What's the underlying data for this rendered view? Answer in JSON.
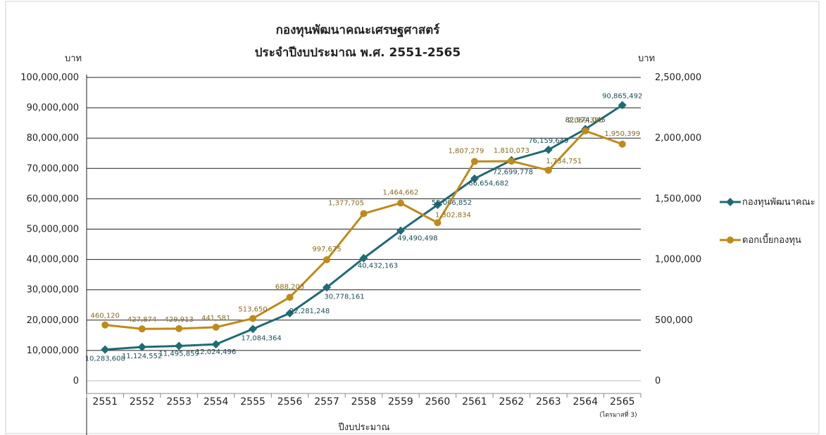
{
  "chart_data": {
    "type": "line",
    "title": "กองทุนพัฒนาคณะเศรษฐศาสตร์",
    "subtitle": "ประจำปีงบประมาณ พ.ศ. 2551-2565",
    "xlabel": "ปีงบประมาณ",
    "ylabel_left": "บาท",
    "ylabel_right": "บาท",
    "x_note": "(ไตรมาสที่ 3)",
    "categories": [
      "2551",
      "2552",
      "2553",
      "2554",
      "2555",
      "2556",
      "2557",
      "2558",
      "2559",
      "2560",
      "2561",
      "2562",
      "2563",
      "2564",
      "2565"
    ],
    "ylim_left": [
      0,
      100000000
    ],
    "ylim_right": [
      0,
      2500000
    ],
    "yticks_left": [
      "0",
      "10,000,000",
      "20,000,000",
      "30,000,000",
      "40,000,000",
      "50,000,000",
      "60,000,000",
      "70,000,000",
      "80,000,000",
      "90,000,000",
      "100,000,000"
    ],
    "yticks_right": [
      "0",
      "500,000",
      "1,000,000",
      "1,500,000",
      "2,000,000",
      "2,500,000"
    ],
    "grid": true,
    "legend_position": "right",
    "series": [
      {
        "name": "กองทุนพัฒนาคณะ",
        "axis": "left",
        "color": "#1f6b75",
        "marker": "diamond",
        "values": [
          10283608,
          11124552,
          11495859,
          12024496,
          17084364,
          22281248,
          30778161,
          40432163,
          49490498,
          58006852,
          66654682,
          72699778,
          76159649,
          82974045,
          90865492
        ],
        "labels": [
          "10,283,608",
          "11,124,552",
          "11,495,859",
          "12,024,496",
          "17,084,364",
          "22,281,248",
          "30,778,161",
          "40,432,163",
          "49,490,498",
          "58,006,852",
          "66,654,682",
          "72,699,778",
          "76,159,649",
          "82,974,045",
          "90,865,492"
        ]
      },
      {
        "name": "ดอกเบี้ยกองทุน",
        "axis": "right",
        "color": "#bf8a1a",
        "marker": "circle",
        "values": [
          460120,
          427874,
          429913,
          441581,
          513650,
          688203,
          997675,
          1377705,
          1464662,
          1302834,
          1807279,
          1810073,
          1734751,
          2059380,
          1950399
        ],
        "labels": [
          "460,120",
          "427,874",
          "429,913",
          "441,581",
          "513,650",
          "688,203",
          "997,675",
          "1,377,705",
          "1,464,662",
          "1,302,834",
          "1,807,279",
          "1,810,073",
          "1,734,751",
          "2,059,380",
          "1,950,399"
        ]
      }
    ]
  }
}
